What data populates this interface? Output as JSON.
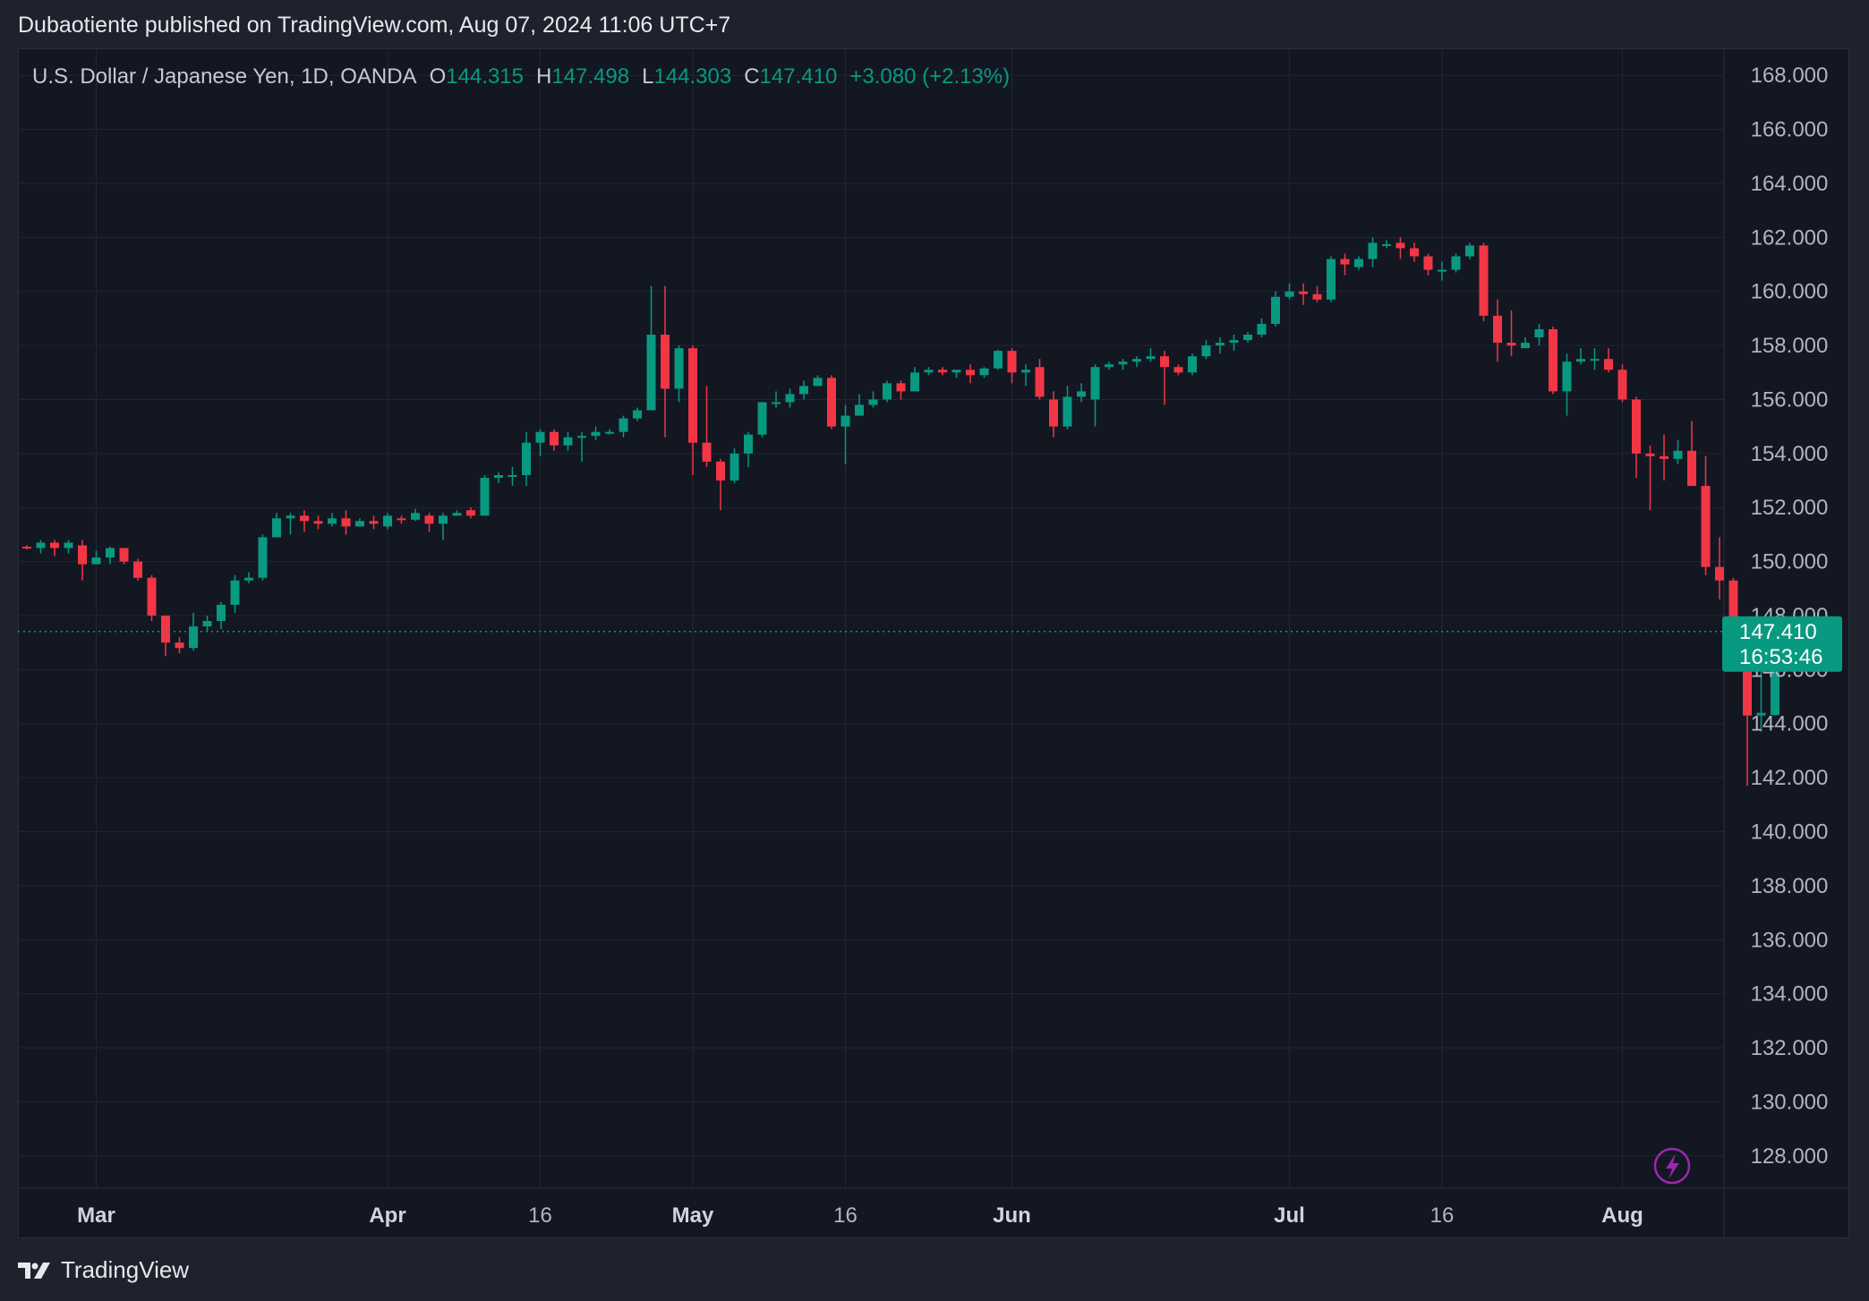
{
  "header": {
    "published_line": "Dubaotiente published on TradingView.com, Aug 07, 2024 11:06 UTC+7",
    "brand": "TradingView"
  },
  "legend": {
    "symbol": "U.S. Dollar / Japanese Yen, 1D, OANDA",
    "o_label": "O",
    "o_value": "144.315",
    "h_label": "H",
    "h_value": "147.498",
    "l_label": "L",
    "l_value": "144.303",
    "c_label": "C",
    "c_value": "147.410",
    "change": "+3.080 (+2.13%)"
  },
  "price_tag": {
    "price": "147.410",
    "countdown": "16:53:46"
  },
  "colors": {
    "up": "#089981",
    "down": "#f23645",
    "grid": "#232733",
    "axis_text": "#b2b5be",
    "tag_bg": "#089981",
    "flash_icon": "#9c27b0"
  },
  "icons": {
    "flash": "lightning-icon",
    "logo": "tradingview-logo-icon"
  },
  "chart_data": {
    "type": "candlestick",
    "ylim": [
      126.8,
      169.0
    ],
    "y_ticks": [
      "168.000",
      "166.000",
      "164.000",
      "162.000",
      "160.000",
      "158.000",
      "156.000",
      "154.000",
      "152.000",
      "150.000",
      "148.000",
      "146.000",
      "144.000",
      "142.000",
      "140.000",
      "138.000",
      "136.000",
      "134.000",
      "132.000",
      "130.000",
      "128.000"
    ],
    "x_ticks": [
      {
        "label": "Mar",
        "index": 5,
        "bold": true
      },
      {
        "label": "Apr",
        "index": 26,
        "bold": true
      },
      {
        "label": "16",
        "index": 37,
        "bold": false
      },
      {
        "label": "May",
        "index": 48,
        "bold": true
      },
      {
        "label": "16",
        "index": 59,
        "bold": false
      },
      {
        "label": "Jun",
        "index": 71,
        "bold": true
      },
      {
        "label": "Jul",
        "index": 91,
        "bold": true
      },
      {
        "label": "16",
        "index": 102,
        "bold": false
      },
      {
        "label": "Aug",
        "index": 115,
        "bold": true
      }
    ],
    "last_price": 147.41,
    "candles": [
      [
        150.55,
        150.6,
        150.45,
        150.5
      ],
      [
        150.5,
        150.8,
        150.3,
        150.7
      ],
      [
        150.7,
        150.8,
        150.2,
        150.5
      ],
      [
        150.5,
        150.8,
        150.3,
        150.7
      ],
      [
        150.6,
        150.8,
        149.3,
        149.9
      ],
      [
        149.9,
        150.4,
        149.9,
        150.15
      ],
      [
        150.15,
        150.55,
        149.9,
        150.5
      ],
      [
        150.5,
        150.5,
        149.9,
        150.0
      ],
      [
        150.0,
        150.1,
        149.3,
        149.4
      ],
      [
        149.4,
        149.5,
        147.8,
        148.0
      ],
      [
        148.0,
        148.0,
        146.5,
        147.0
      ],
      [
        147.0,
        147.2,
        146.6,
        146.8
      ],
      [
        146.8,
        148.1,
        146.7,
        147.6
      ],
      [
        147.6,
        148.0,
        147.4,
        147.8
      ],
      [
        147.8,
        148.5,
        147.5,
        148.4
      ],
      [
        148.4,
        149.5,
        148.1,
        149.3
      ],
      [
        149.3,
        149.6,
        149.2,
        149.4
      ],
      [
        149.4,
        151.0,
        149.3,
        150.9
      ],
      [
        150.9,
        151.8,
        150.9,
        151.6
      ],
      [
        151.6,
        151.8,
        151.0,
        151.7
      ],
      [
        151.7,
        151.9,
        151.1,
        151.5
      ],
      [
        151.5,
        151.7,
        151.2,
        151.4
      ],
      [
        151.4,
        151.8,
        151.3,
        151.6
      ],
      [
        151.6,
        151.9,
        151.0,
        151.3
      ],
      [
        151.3,
        151.6,
        151.3,
        151.5
      ],
      [
        151.5,
        151.7,
        151.2,
        151.4
      ],
      [
        151.3,
        151.8,
        151.2,
        151.7
      ],
      [
        151.6,
        151.7,
        151.4,
        151.55
      ],
      [
        151.55,
        151.95,
        151.5,
        151.8
      ],
      [
        151.7,
        151.8,
        151.1,
        151.4
      ],
      [
        151.4,
        151.8,
        150.8,
        151.7
      ],
      [
        151.7,
        151.9,
        151.7,
        151.8
      ],
      [
        151.9,
        152.0,
        151.6,
        151.7
      ],
      [
        151.7,
        153.2,
        151.7,
        153.1
      ],
      [
        153.1,
        153.3,
        152.9,
        153.2
      ],
      [
        153.2,
        153.5,
        152.8,
        153.2
      ],
      [
        153.2,
        154.8,
        152.8,
        154.4
      ],
      [
        154.4,
        154.9,
        153.9,
        154.8
      ],
      [
        154.8,
        154.9,
        154.1,
        154.3
      ],
      [
        154.3,
        154.8,
        154.1,
        154.6
      ],
      [
        154.6,
        154.8,
        153.7,
        154.65
      ],
      [
        154.65,
        155.0,
        154.5,
        154.8
      ],
      [
        154.8,
        154.9,
        154.7,
        154.8
      ],
      [
        154.8,
        155.4,
        154.6,
        155.3
      ],
      [
        155.3,
        155.7,
        155.2,
        155.6
      ],
      [
        155.6,
        160.2,
        155.6,
        158.4
      ],
      [
        158.4,
        160.2,
        154.6,
        156.4
      ],
      [
        156.4,
        158.0,
        155.9,
        157.9
      ],
      [
        157.9,
        158.0,
        153.2,
        154.4
      ],
      [
        154.4,
        156.5,
        153.5,
        153.7
      ],
      [
        153.7,
        153.8,
        151.9,
        153.0
      ],
      [
        153.0,
        154.2,
        152.9,
        154.0
      ],
      [
        154.0,
        154.8,
        153.5,
        154.7
      ],
      [
        154.7,
        155.9,
        154.6,
        155.9
      ],
      [
        155.9,
        156.3,
        155.7,
        155.9
      ],
      [
        155.9,
        156.4,
        155.7,
        156.2
      ],
      [
        156.2,
        156.7,
        156.0,
        156.5
      ],
      [
        156.5,
        156.9,
        156.5,
        156.8
      ],
      [
        156.8,
        156.9,
        154.9,
        155.0
      ],
      [
        155.0,
        155.8,
        153.6,
        155.4
      ],
      [
        155.4,
        156.2,
        155.4,
        155.8
      ],
      [
        155.8,
        156.3,
        155.7,
        156.0
      ],
      [
        156.0,
        156.7,
        155.9,
        156.6
      ],
      [
        156.6,
        156.7,
        156.0,
        156.3
      ],
      [
        156.3,
        157.2,
        156.3,
        157.0
      ],
      [
        157.0,
        157.2,
        156.9,
        157.1
      ],
      [
        157.1,
        157.2,
        156.9,
        157.0
      ],
      [
        157.0,
        157.1,
        156.8,
        157.1
      ],
      [
        157.1,
        157.3,
        156.6,
        156.9
      ],
      [
        156.9,
        157.2,
        156.8,
        157.15
      ],
      [
        157.15,
        157.85,
        157.1,
        157.8
      ],
      [
        157.8,
        157.9,
        156.6,
        157.0
      ],
      [
        157.0,
        157.3,
        156.5,
        157.1
      ],
      [
        157.2,
        157.5,
        156.0,
        156.1
      ],
      [
        156.0,
        156.3,
        154.6,
        155.0
      ],
      [
        155.0,
        156.5,
        154.9,
        156.1
      ],
      [
        156.1,
        156.6,
        155.9,
        156.3
      ],
      [
        156.0,
        157.3,
        155.0,
        157.2
      ],
      [
        157.2,
        157.4,
        157.1,
        157.3
      ],
      [
        157.3,
        157.5,
        157.1,
        157.4
      ],
      [
        157.4,
        157.6,
        157.2,
        157.5
      ],
      [
        157.5,
        157.9,
        157.4,
        157.6
      ],
      [
        157.6,
        157.8,
        155.8,
        157.2
      ],
      [
        157.2,
        157.3,
        156.9,
        157.0
      ],
      [
        157.0,
        157.7,
        156.9,
        157.6
      ],
      [
        157.6,
        158.2,
        157.5,
        158.0
      ],
      [
        158.0,
        158.3,
        157.7,
        158.1
      ],
      [
        158.1,
        158.4,
        157.8,
        158.2
      ],
      [
        158.2,
        158.5,
        158.1,
        158.4
      ],
      [
        158.4,
        159.0,
        158.3,
        158.8
      ],
      [
        158.8,
        160.0,
        158.7,
        159.8
      ],
      [
        159.8,
        160.3,
        159.7,
        160.0
      ],
      [
        160.0,
        160.3,
        159.5,
        159.9
      ],
      [
        159.9,
        160.2,
        159.6,
        159.7
      ],
      [
        159.7,
        161.3,
        159.6,
        161.2
      ],
      [
        161.2,
        161.4,
        160.6,
        161.0
      ],
      [
        160.9,
        161.3,
        160.8,
        161.2
      ],
      [
        161.2,
        162.0,
        160.9,
        161.8
      ],
      [
        161.7,
        161.9,
        161.6,
        161.75
      ],
      [
        161.8,
        162.0,
        161.2,
        161.6
      ],
      [
        161.6,
        161.8,
        161.1,
        161.3
      ],
      [
        161.3,
        161.4,
        160.6,
        160.8
      ],
      [
        160.8,
        161.1,
        160.4,
        160.8
      ],
      [
        160.8,
        161.4,
        160.7,
        161.3
      ],
      [
        161.3,
        161.8,
        161.2,
        161.7
      ],
      [
        161.7,
        161.8,
        158.9,
        159.1
      ],
      [
        159.1,
        159.7,
        157.4,
        158.1
      ],
      [
        158.1,
        159.3,
        157.6,
        158.0
      ],
      [
        157.9,
        158.3,
        157.9,
        158.1
      ],
      [
        158.3,
        158.8,
        158.0,
        158.6
      ],
      [
        158.6,
        158.7,
        156.2,
        156.3
      ],
      [
        156.3,
        157.7,
        155.4,
        157.4
      ],
      [
        157.4,
        157.9,
        157.3,
        157.5
      ],
      [
        157.5,
        157.9,
        157.1,
        157.5
      ],
      [
        157.5,
        157.9,
        157.0,
        157.1
      ],
      [
        157.1,
        157.3,
        155.9,
        156.0
      ],
      [
        156.0,
        156.1,
        153.1,
        154.0
      ],
      [
        154.0,
        154.3,
        151.9,
        153.9
      ],
      [
        153.9,
        154.7,
        153.0,
        153.8
      ],
      [
        153.8,
        154.5,
        153.6,
        154.1
      ],
      [
        154.1,
        155.2,
        152.8,
        152.8
      ],
      [
        152.8,
        153.9,
        149.5,
        149.8
      ],
      [
        149.8,
        150.9,
        148.6,
        149.3
      ],
      [
        149.3,
        149.4,
        146.4,
        146.6
      ],
      [
        146.6,
        146.8,
        141.7,
        144.3
      ],
      [
        144.3,
        146.4,
        143.7,
        144.4
      ],
      [
        144.315,
        147.498,
        144.303,
        147.41
      ]
    ]
  }
}
